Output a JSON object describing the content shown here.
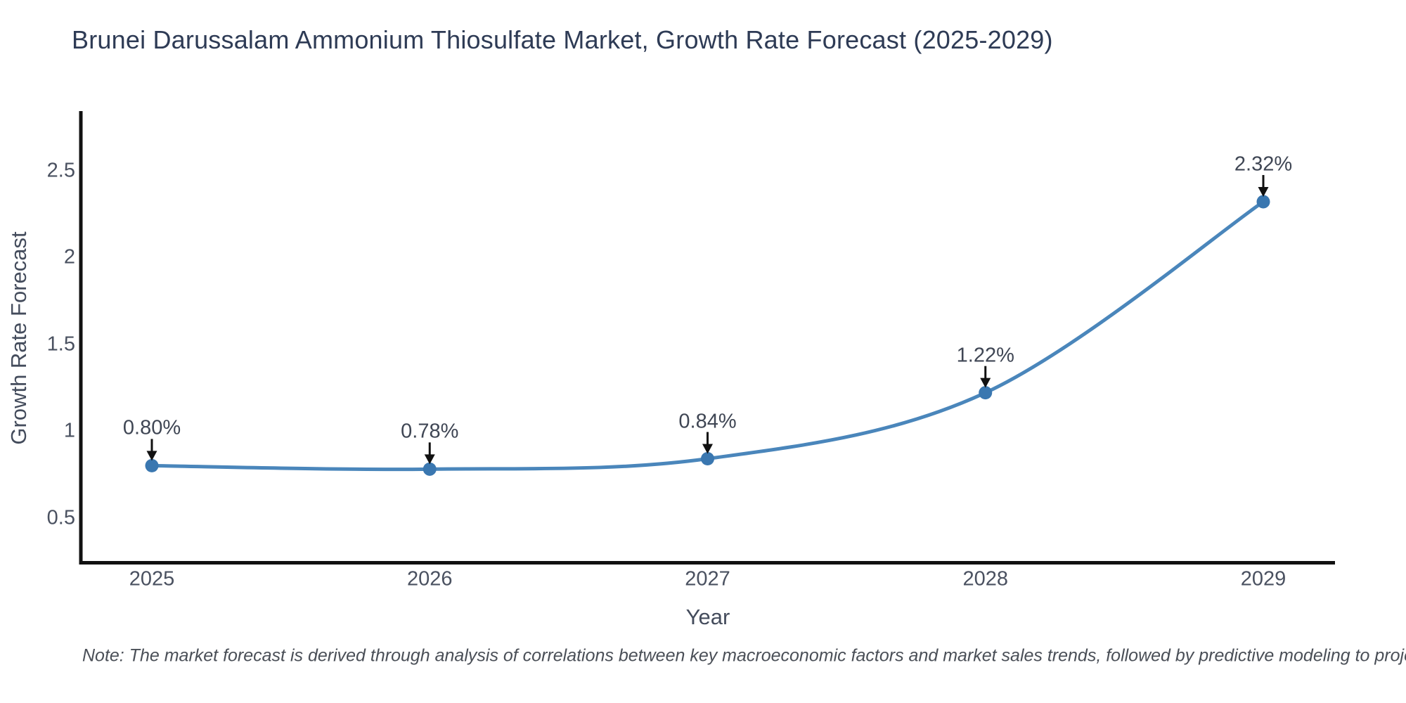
{
  "title": "Brunei Darussalam Ammonium Thiosulfate Market, Growth Rate Forecast (2025-2029)",
  "note": "Note: The market forecast is derived through analysis of correlations between key macroeconomic factors and market sales trends, followed by predictive modeling to project future sales.",
  "chart_data": {
    "type": "line",
    "line_shape": "spline",
    "x": [
      2025,
      2026,
      2027,
      2028,
      2029
    ],
    "values": [
      0.8,
      0.78,
      0.84,
      1.22,
      2.32
    ],
    "point_labels": [
      "0.80%",
      "0.78%",
      "0.84%",
      "1.22%",
      "2.32%"
    ],
    "xtick_labels": [
      "2025",
      "2026",
      "2027",
      "2028",
      "2029"
    ],
    "ytick_values": [
      0.5,
      1,
      1.5,
      2,
      2.5
    ],
    "ytick_labels": [
      "0.5",
      "1",
      "1.5",
      "2",
      "2.5"
    ],
    "title": "Brunei Darussalam Ammonium Thiosulfate Market, Growth Rate Forecast (2025-2029)",
    "xlabel": "Year",
    "ylabel": "Growth Rate Forecast",
    "ylim": [
      0.24,
      2.83
    ],
    "grid": false,
    "legend": "none",
    "line_color": "#4a86bb",
    "marker_color": "#3a77b0",
    "axis_color": "#111111",
    "annotation_arrow_color": "#111111"
  }
}
